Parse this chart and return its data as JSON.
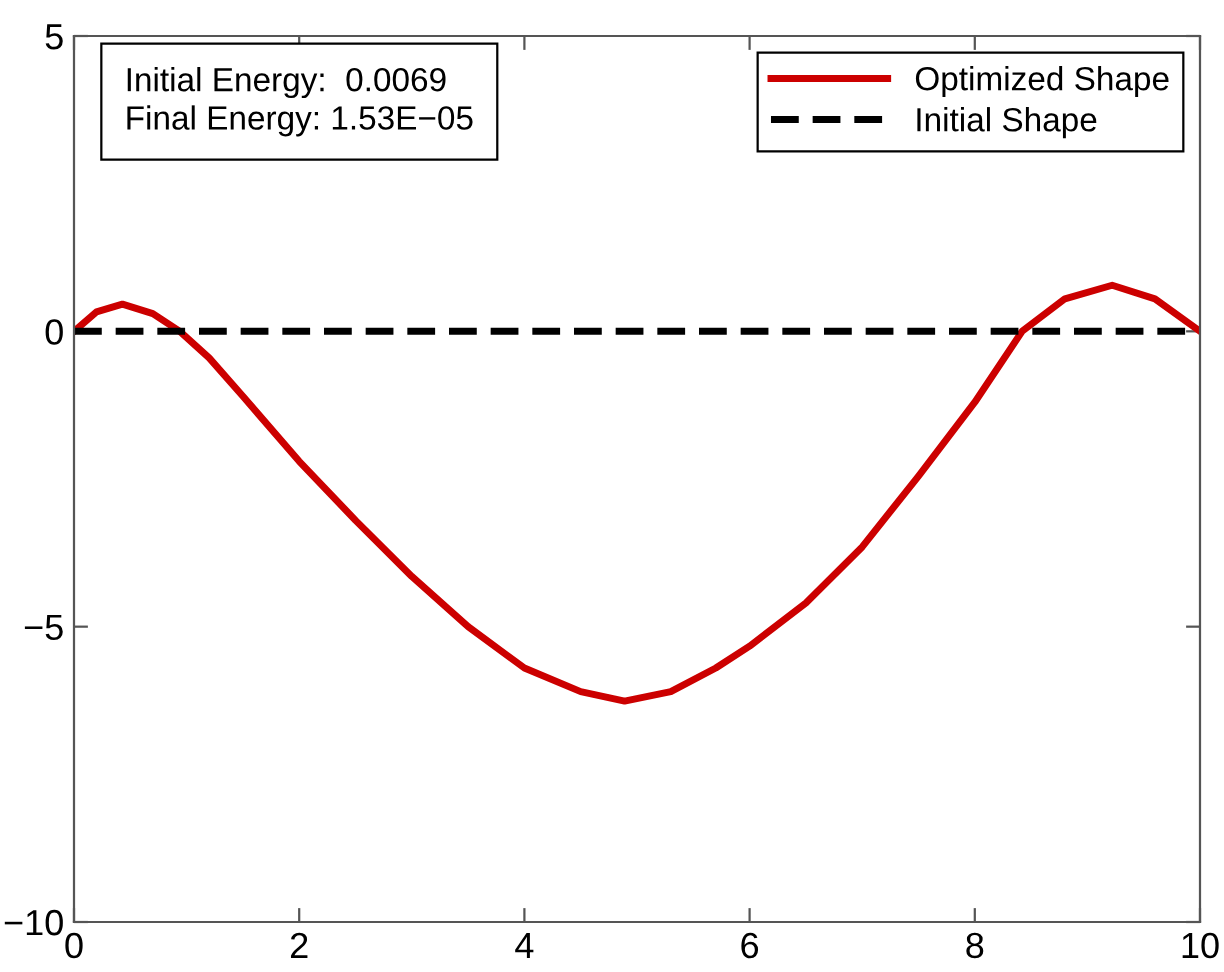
{
  "chart_data": {
    "type": "line",
    "xlim": [
      0,
      10
    ],
    "ylim": [
      -10,
      5
    ],
    "xticks": [
      0,
      2,
      4,
      6,
      8,
      10
    ],
    "yticks": [
      -10,
      -5,
      0,
      5
    ],
    "grid": false,
    "legend": "top right",
    "annotations": [
      "Initial Energy:  0.0069\nFinal Energy: 1.53E−05"
    ],
    "series": [
      {
        "name": "Optimized Shape",
        "color": "#cc0000",
        "line_style": "solid",
        "x": [
          0,
          0.2,
          0.43,
          0.7,
          0.94,
          1.2,
          1.5,
          2,
          2.5,
          3,
          3.5,
          4,
          4.5,
          4.89,
          5.3,
          5.7,
          6,
          6.5,
          7,
          7.5,
          8,
          8.42,
          8.8,
          9.22,
          9.6,
          10
        ],
        "values": [
          0,
          0.33,
          0.46,
          0.3,
          0,
          -0.45,
          -1.1,
          -2.2,
          -3.2,
          -4.15,
          -5.0,
          -5.7,
          -6.1,
          -6.26,
          -6.1,
          -5.7,
          -5.33,
          -4.6,
          -3.65,
          -2.45,
          -1.2,
          0,
          0.55,
          0.78,
          0.55,
          0
        ]
      },
      {
        "name": "Initial Shape",
        "color": "#000000",
        "line_style": "dashed",
        "x": [
          0,
          10
        ],
        "values": [
          0,
          0
        ]
      }
    ]
  }
}
